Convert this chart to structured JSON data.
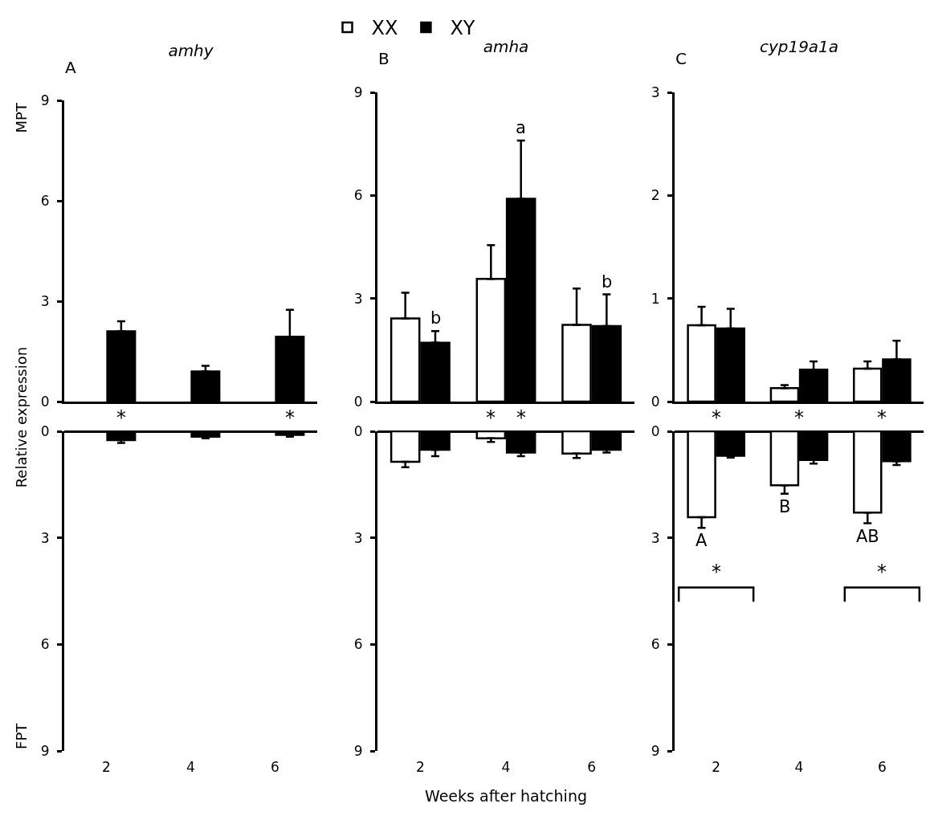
{
  "chart_data": [
    {
      "type": "bar",
      "title": "amhy",
      "ylabel": "MPT",
      "annotations": [
        "A",
        "*",
        "*"
      ],
      "categories": [
        "2",
        "4",
        "6"
      ],
      "series": [
        {
          "name": "XX",
          "color": "#ffffff",
          "values": [
            null,
            null,
            null
          ],
          "errors": [
            null,
            null,
            null
          ]
        },
        {
          "name": "XY",
          "color": "#000000",
          "values": [
            2.1,
            0.9,
            1.94
          ],
          "errors": [
            0.3,
            0.17,
            0.8
          ]
        }
      ],
      "ylim": [
        0,
        9
      ],
      "yticks": [
        0,
        3,
        6,
        9
      ],
      "tick_labels": "y",
      "legend": "top"
    },
    {
      "type": "bar",
      "ylabel": "FPT",
      "annotations": [
        "Relative expression"
      ],
      "categories": [
        "2",
        "4",
        "6"
      ],
      "series": [
        {
          "color": "#ffffff",
          "values": [
            null,
            null,
            null
          ],
          "errors": [
            null,
            null,
            null
          ]
        },
        {
          "color": "#000000",
          "values": [
            0.25,
            0.15,
            0.1
          ],
          "errors": [
            0.08,
            0.05,
            0.05
          ]
        }
      ],
      "ylim": [
        9,
        0
      ],
      "yticks": [
        0,
        3,
        6,
        9
      ]
    },
    {
      "type": "bar",
      "title": "amha",
      "annotations": [
        "B",
        "*",
        "*",
        {
          "text": "b",
          "x": "2",
          "y": 1.71
        },
        "a",
        {
          "text": "b",
          "x": "6",
          "y": 2.2
        }
      ],
      "categories": [
        "2",
        "4",
        "6"
      ],
      "series": [
        {
          "color": "#ffffff",
          "values": [
            2.42,
            3.57,
            2.23
          ],
          "errors": [
            0.75,
            0.98,
            1.06
          ]
        },
        {
          "color": "#000000",
          "values": [
            1.71,
            5.9,
            2.2
          ],
          "errors": [
            0.34,
            1.7,
            0.92
          ]
        }
      ],
      "ylim": [
        0,
        9
      ],
      "yticks": [
        0,
        3,
        6,
        9
      ],
      "tick_labels": "y"
    },
    {
      "type": "bar",
      "xlabel": "Weeks after hatching",
      "categories": [
        "2",
        "4",
        "6"
      ],
      "series": [
        {
          "color": "#ffffff",
          "values": [
            0.86,
            0.2,
            0.63
          ],
          "errors": [
            0.15,
            0.1,
            0.12
          ]
        },
        {
          "color": "#000000",
          "values": [
            0.52,
            0.6,
            0.52
          ],
          "errors": [
            0.18,
            0.1,
            0.08
          ]
        }
      ],
      "ylim": [
        9,
        0
      ],
      "yticks": [
        0,
        3,
        6,
        9
      ]
    },
    {
      "type": "bar",
      "title": "cyp19a1a",
      "annotations": [
        "C",
        "*",
        "*",
        "*"
      ],
      "categories": [
        "2",
        "4",
        "6"
      ],
      "series": [
        {
          "color": "#ffffff",
          "values": [
            0.74,
            0.13,
            0.32
          ],
          "errors": [
            0.18,
            0.03,
            0.07
          ]
        },
        {
          "color": "#000000",
          "values": [
            0.71,
            0.31,
            0.41
          ],
          "errors": [
            0.19,
            0.08,
            0.18
          ]
        }
      ],
      "ylim": [
        0,
        3
      ],
      "yticks": [
        0,
        1,
        2,
        3
      ],
      "tick_labels": "y"
    },
    {
      "type": "bar",
      "annotations": [
        {
          "text": "A",
          "x": "2",
          "y": 2.42
        },
        {
          "text": "B",
          "x": "4",
          "y": 1.52
        },
        {
          "text": "AB",
          "x": "6",
          "y": 2.29
        },
        "*",
        "*"
      ],
      "categories": [
        "2",
        "4",
        "6"
      ],
      "series": [
        {
          "color": "#ffffff",
          "values": [
            2.42,
            1.52,
            2.29
          ],
          "errors": [
            0.3,
            0.24,
            0.3
          ]
        },
        {
          "color": "#000000",
          "values": [
            0.69,
            0.81,
            0.84
          ],
          "errors": [
            0.05,
            0.1,
            0.11
          ]
        }
      ],
      "ylim": [
        9,
        0
      ],
      "yticks": [
        0,
        3,
        6,
        9
      ]
    }
  ]
}
